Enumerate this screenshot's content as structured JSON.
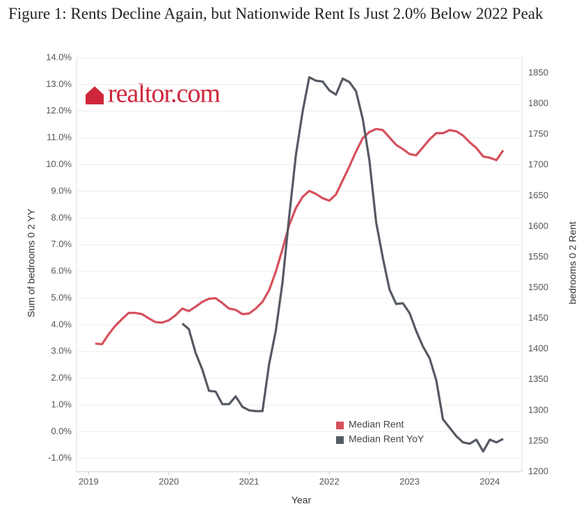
{
  "chart_data": {
    "type": "line",
    "title": "Figure 1: Rents Decline Again, but Nationwide Rent Is Just 2.0% Below 2022 Peak",
    "logo": "realtor.com",
    "xlabel": "Year",
    "ylabel": "Sum of bedrooms 0 2 YY",
    "y2label": "bedrooms 0 2 Rent",
    "xlim": [
      2018.85,
      2024.4
    ],
    "xticks": [
      2019,
      2020,
      2021,
      2022,
      2023,
      2024
    ],
    "ylim": [
      -1.5,
      14.0
    ],
    "yticks": [
      {
        "value": -1,
        "label": "-1.0%"
      },
      {
        "value": 0,
        "label": "0.0%"
      },
      {
        "value": 1,
        "label": "1.0%"
      },
      {
        "value": 2,
        "label": "2.0%"
      },
      {
        "value": 3,
        "label": "3.0%"
      },
      {
        "value": 4,
        "label": "4.0%"
      },
      {
        "value": 5,
        "label": "5.0%"
      },
      {
        "value": 6,
        "label": "6.0%"
      },
      {
        "value": 7,
        "label": "7.0%"
      },
      {
        "value": 8,
        "label": "8.0%"
      },
      {
        "value": 9,
        "label": "9.0%"
      },
      {
        "value": 10,
        "label": "10.0%"
      },
      {
        "value": 11,
        "label": "11.0%"
      },
      {
        "value": 12,
        "label": "12.0%"
      },
      {
        "value": 13,
        "label": "13.0%"
      },
      {
        "value": 14,
        "label": "14.0%"
      }
    ],
    "y2lim": [
      1200,
      1875
    ],
    "y2ticks": [
      1200,
      1250,
      1300,
      1350,
      1400,
      1450,
      1500,
      1550,
      1600,
      1650,
      1700,
      1750,
      1800,
      1850
    ],
    "grid": true,
    "legend": "lower right",
    "x": [
      2019.083,
      2019.167,
      2019.25,
      2019.333,
      2019.417,
      2019.5,
      2019.583,
      2019.667,
      2019.75,
      2019.833,
      2019.917,
      2020.0,
      2020.083,
      2020.167,
      2020.25,
      2020.333,
      2020.417,
      2020.5,
      2020.583,
      2020.667,
      2020.75,
      2020.833,
      2020.917,
      2021.0,
      2021.083,
      2021.167,
      2021.25,
      2021.333,
      2021.417,
      2021.5,
      2021.583,
      2021.667,
      2021.75,
      2021.833,
      2021.917,
      2022.0,
      2022.083,
      2022.167,
      2022.25,
      2022.333,
      2022.417,
      2022.5,
      2022.583,
      2022.667,
      2022.75,
      2022.833,
      2022.917,
      2023.0,
      2023.083,
      2023.167,
      2023.25,
      2023.333,
      2023.417,
      2023.5,
      2023.583,
      2023.667,
      2023.75,
      2023.833,
      2023.917,
      2024.0,
      2024.083,
      2024.167
    ],
    "series": [
      {
        "name": "Median Rent",
        "color": "#d6505c",
        "axis": "y2",
        "values": [
          1409,
          1408,
          1424,
          1438,
          1449,
          1459,
          1459,
          1457,
          1450,
          1444,
          1443,
          1447,
          1455,
          1466,
          1462,
          1469,
          1477,
          1482,
          1483,
          1475,
          1466,
          1464,
          1457,
          1458,
          1466,
          1477,
          1496,
          1526,
          1563,
          1602,
          1630,
          1648,
          1658,
          1653,
          1646,
          1642,
          1652,
          1675,
          1698,
          1722,
          1744,
          1754,
          1759,
          1757,
          1745,
          1733,
          1726,
          1718,
          1716,
          1729,
          1742,
          1752,
          1752,
          1757,
          1755,
          1748,
          1737,
          1728,
          1714,
          1712,
          1708,
          1724
        ]
      },
      {
        "name": "Median Rent YoY",
        "color": "#555a63",
        "axis": "y",
        "values": [
          null,
          null,
          null,
          null,
          null,
          null,
          null,
          null,
          null,
          null,
          null,
          null,
          null,
          4.05,
          3.84,
          2.96,
          2.33,
          1.53,
          1.5,
          1.03,
          1.03,
          1.32,
          0.93,
          0.8,
          0.77,
          0.77,
          2.54,
          3.77,
          5.59,
          8.06,
          10.35,
          11.97,
          13.27,
          13.14,
          13.11,
          12.78,
          12.62,
          13.22,
          13.09,
          12.75,
          11.71,
          10.15,
          7.85,
          6.5,
          5.33,
          4.78,
          4.81,
          4.44,
          3.77,
          3.19,
          2.75,
          1.92,
          0.46,
          0.15,
          -0.17,
          -0.4,
          -0.45,
          -0.3,
          -0.74,
          -0.3,
          -0.4,
          -0.27
        ]
      }
    ]
  }
}
